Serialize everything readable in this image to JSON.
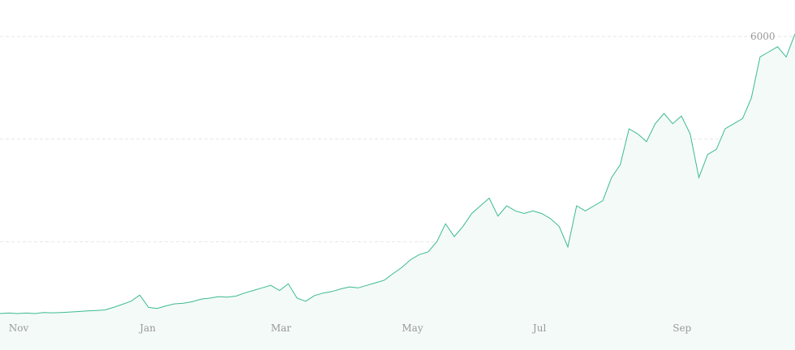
{
  "chart_data": {
    "type": "area",
    "categories": [
      null,
      "Nov",
      null,
      null,
      null,
      null,
      null,
      null,
      null,
      null,
      null,
      null,
      null,
      null,
      null,
      null,
      "Jan",
      null,
      null,
      null,
      null,
      null,
      null,
      null,
      null,
      null,
      null,
      null,
      null,
      null,
      null,
      "Mar",
      null,
      null,
      null,
      null,
      null,
      null,
      null,
      null,
      null,
      null,
      null,
      null,
      null,
      null,
      "May",
      null,
      null,
      null,
      null,
      null,
      null,
      null,
      null,
      null,
      null,
      null,
      null,
      null,
      null,
      "Jul",
      null,
      null,
      null,
      null,
      null,
      null,
      null,
      null,
      null,
      null,
      null,
      null,
      null,
      null,
      null,
      "Sep",
      null,
      null,
      null,
      null,
      null,
      null,
      null,
      null,
      null,
      null,
      null,
      null,
      null,
      null
    ],
    "values": [
      600,
      610,
      600,
      610,
      600,
      620,
      615,
      620,
      630,
      640,
      650,
      660,
      670,
      720,
      780,
      840,
      960,
      720,
      700,
      750,
      790,
      800,
      830,
      880,
      900,
      930,
      920,
      940,
      1000,
      1050,
      1100,
      1150,
      1050,
      1180,
      900,
      840,
      950,
      1000,
      1030,
      1080,
      1120,
      1100,
      1150,
      1200,
      1250,
      1380,
      1500,
      1650,
      1750,
      1800,
      2000,
      2350,
      2100,
      2300,
      2550,
      2700,
      2850,
      2500,
      2700,
      2600,
      2550,
      2600,
      2550,
      2450,
      2300,
      1900,
      2700,
      2600,
      2700,
      2800,
      3250,
      3500,
      4200,
      4100,
      3950,
      4300,
      4500,
      4300,
      4450,
      4100,
      3250,
      3700,
      3800,
      4200,
      4300,
      4400,
      4800,
      5600,
      5700,
      5800,
      5600,
      6050
    ],
    "color": "#3cba92",
    "fill": "#f3faf8",
    "ylim": [
      0,
      6000
    ],
    "yticks": [
      2000,
      4000,
      6000
    ],
    "grid": true
  }
}
